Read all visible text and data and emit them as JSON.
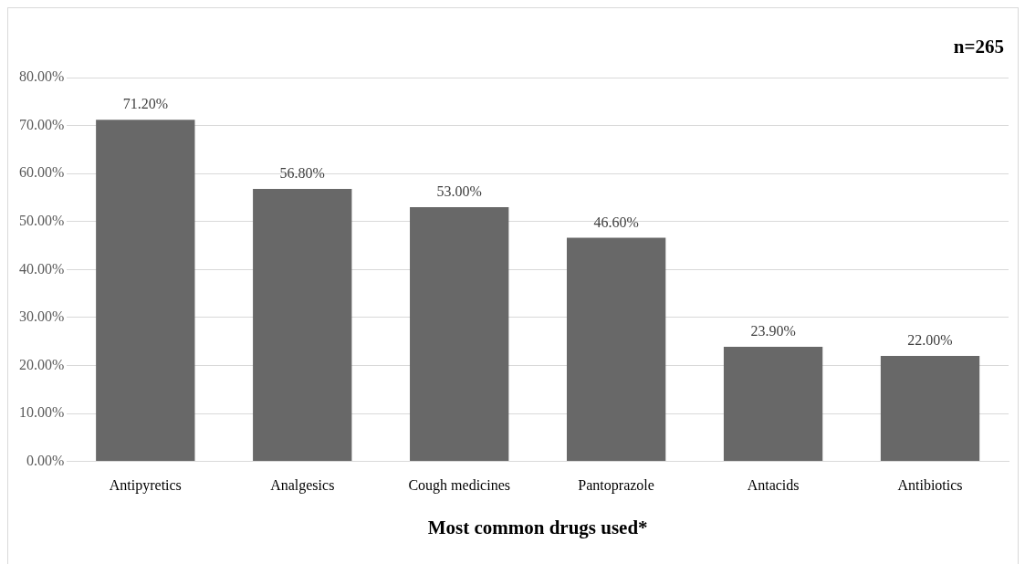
{
  "chart_data": {
    "type": "bar",
    "categories": [
      "Antipyretics",
      "Analgesics",
      "Cough medicines",
      "Pantoprazole",
      "Antacids",
      "Antibiotics"
    ],
    "values": [
      71.2,
      56.8,
      53.0,
      46.6,
      23.9,
      22.0
    ],
    "value_labels": [
      "71.20%",
      "56.80%",
      "53.00%",
      "46.60%",
      "23.90%",
      "22.00%"
    ],
    "color": "#686868",
    "xlabel": "Most common drugs used*",
    "annotations": [
      "n=265"
    ],
    "ylim": [
      0,
      80
    ],
    "yticks": [
      {
        "value": 0,
        "label": "0.00%"
      },
      {
        "value": 10,
        "label": "10.00%"
      },
      {
        "value": 20,
        "label": "20.00%"
      },
      {
        "value": 30,
        "label": "30.00%"
      },
      {
        "value": 40,
        "label": "40.00%"
      },
      {
        "value": 50,
        "label": "50.00%"
      },
      {
        "value": 60,
        "label": "60.00%"
      },
      {
        "value": 70,
        "label": "70.00%"
      },
      {
        "value": 80,
        "label": "80.00%"
      }
    ],
    "grid": "y",
    "legend": false
  }
}
